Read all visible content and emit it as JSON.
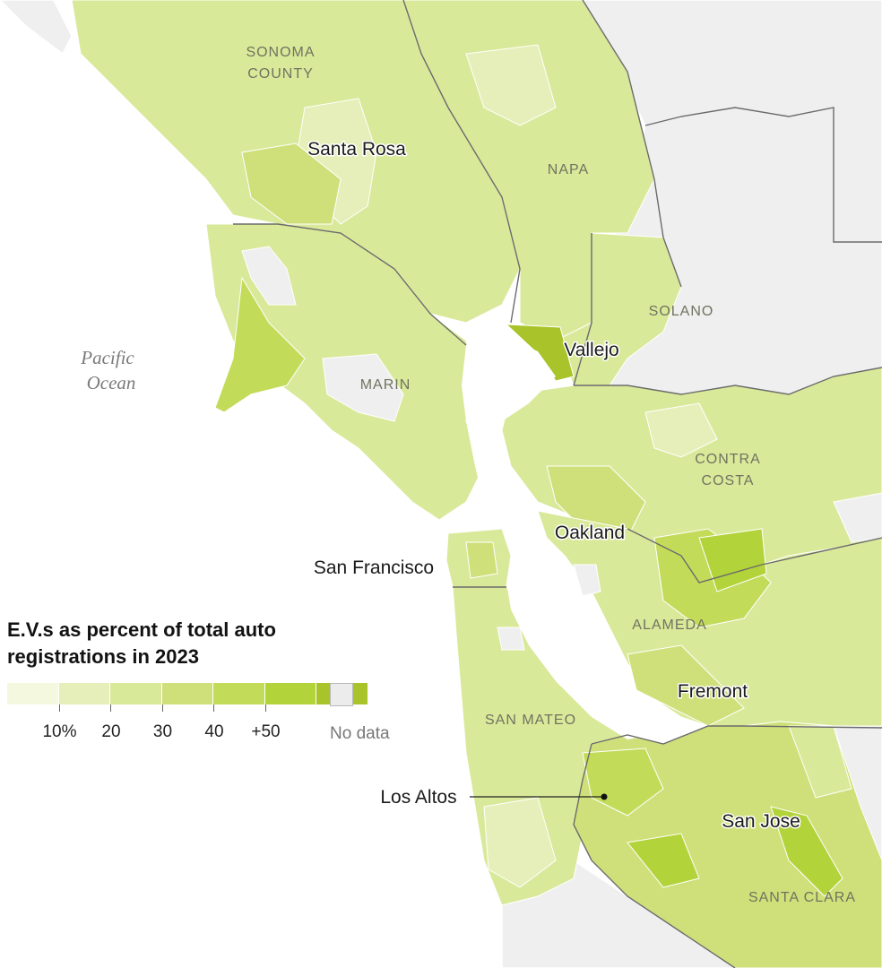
{
  "legend": {
    "title": "E.V.s as percent of total auto registrations in 2023",
    "swatch_colors": [
      "#f4f8de",
      "#e6efb9",
      "#d9e99a",
      "#cfe07a",
      "#c2dc5a",
      "#b3d33a",
      "#a8c42a"
    ],
    "tick_labels": [
      "10%",
      "20",
      "30",
      "40",
      "+50"
    ],
    "no_data_label": "No data",
    "no_data_color": "#ececec"
  },
  "map": {
    "ocean_label_line1": "Pacific",
    "ocean_label_line2": "Ocean",
    "county_labels": {
      "sonoma_line1": "SONOMA",
      "sonoma_line2": "COUNTY",
      "napa": "NAPA",
      "solano": "SOLANO",
      "marin": "MARIN",
      "contra_costa_line1": "CONTRA",
      "contra_costa_line2": "COSTA",
      "alameda": "ALAMEDA",
      "san_mateo": "SAN MATEO",
      "santa_clara": "SANTA CLARA"
    },
    "city_labels": {
      "santa_rosa": "Santa Rosa",
      "vallejo": "Vallejo",
      "oakland": "Oakland",
      "san_francisco": "San Francisco",
      "fremont": "Fremont",
      "los_altos": "Los Altos",
      "san_jose": "San Jose"
    },
    "colors": {
      "water": "#ffffff",
      "neighbor_land": "#efefef",
      "county_border": "#6b6b6b"
    }
  }
}
